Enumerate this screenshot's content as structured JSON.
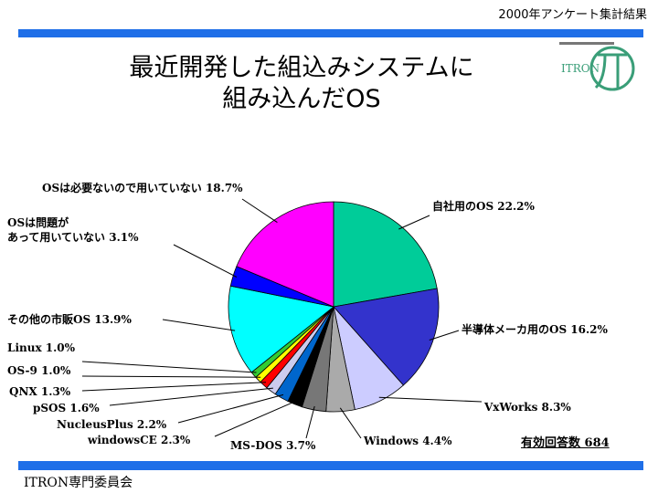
{
  "header": {
    "corner_text": "2000年アンケート集計結果"
  },
  "title": {
    "line1": "最近開発した組込みシステムに",
    "line2": "組み込んだOS"
  },
  "logo": {
    "text": "ITRON"
  },
  "footer": {
    "text": "ITRON専門委員会"
  },
  "note": {
    "text": "有効回答数 684"
  },
  "colors": {
    "accent_bar": "#1f6fe8",
    "logo": "#3a9e78"
  },
  "chart_data": {
    "type": "pie",
    "total_responses": 684,
    "slices": [
      {
        "label": "自社用のOS 22.2%",
        "value": 22.2,
        "color": "#00cc99"
      },
      {
        "label": "半導体メーカ用のOS 16.2%",
        "value": 16.2,
        "color": "#3333cc"
      },
      {
        "label": "VxWorks 8.3%",
        "value": 8.3,
        "color": "#ccccff"
      },
      {
        "label": "Windows 4.4%",
        "value": 4.4,
        "color": "#aaaaaa"
      },
      {
        "label": "MS-DOS 3.7%",
        "value": 3.7,
        "color": "#777777"
      },
      {
        "label": "windowsCE 2.3%",
        "value": 2.3,
        "color": "#000000"
      },
      {
        "label": "NucleusPlus 2.2%",
        "value": 2.2,
        "color": "#0066cc"
      },
      {
        "label": "pSOS 1.6%",
        "value": 1.6,
        "color": "#ccccee"
      },
      {
        "label": "QNX 1.3%",
        "value": 1.3,
        "color": "#ff0000"
      },
      {
        "label": "OS-9 1.0%",
        "value": 1.0,
        "color": "#ffff00"
      },
      {
        "label": "Linux 1.0%",
        "value": 1.0,
        "color": "#33cc33"
      },
      {
        "label": "その他の市販OS 13.9%",
        "value": 13.9,
        "color": "#00ffff"
      },
      {
        "label": "OSは問題が\nあって用いていない 3.1%",
        "value": 3.1,
        "color": "#0000ff"
      },
      {
        "label": "OSは必要ないので用いていない 18.7%",
        "value": 18.7,
        "color": "#ff00ff"
      }
    ]
  }
}
